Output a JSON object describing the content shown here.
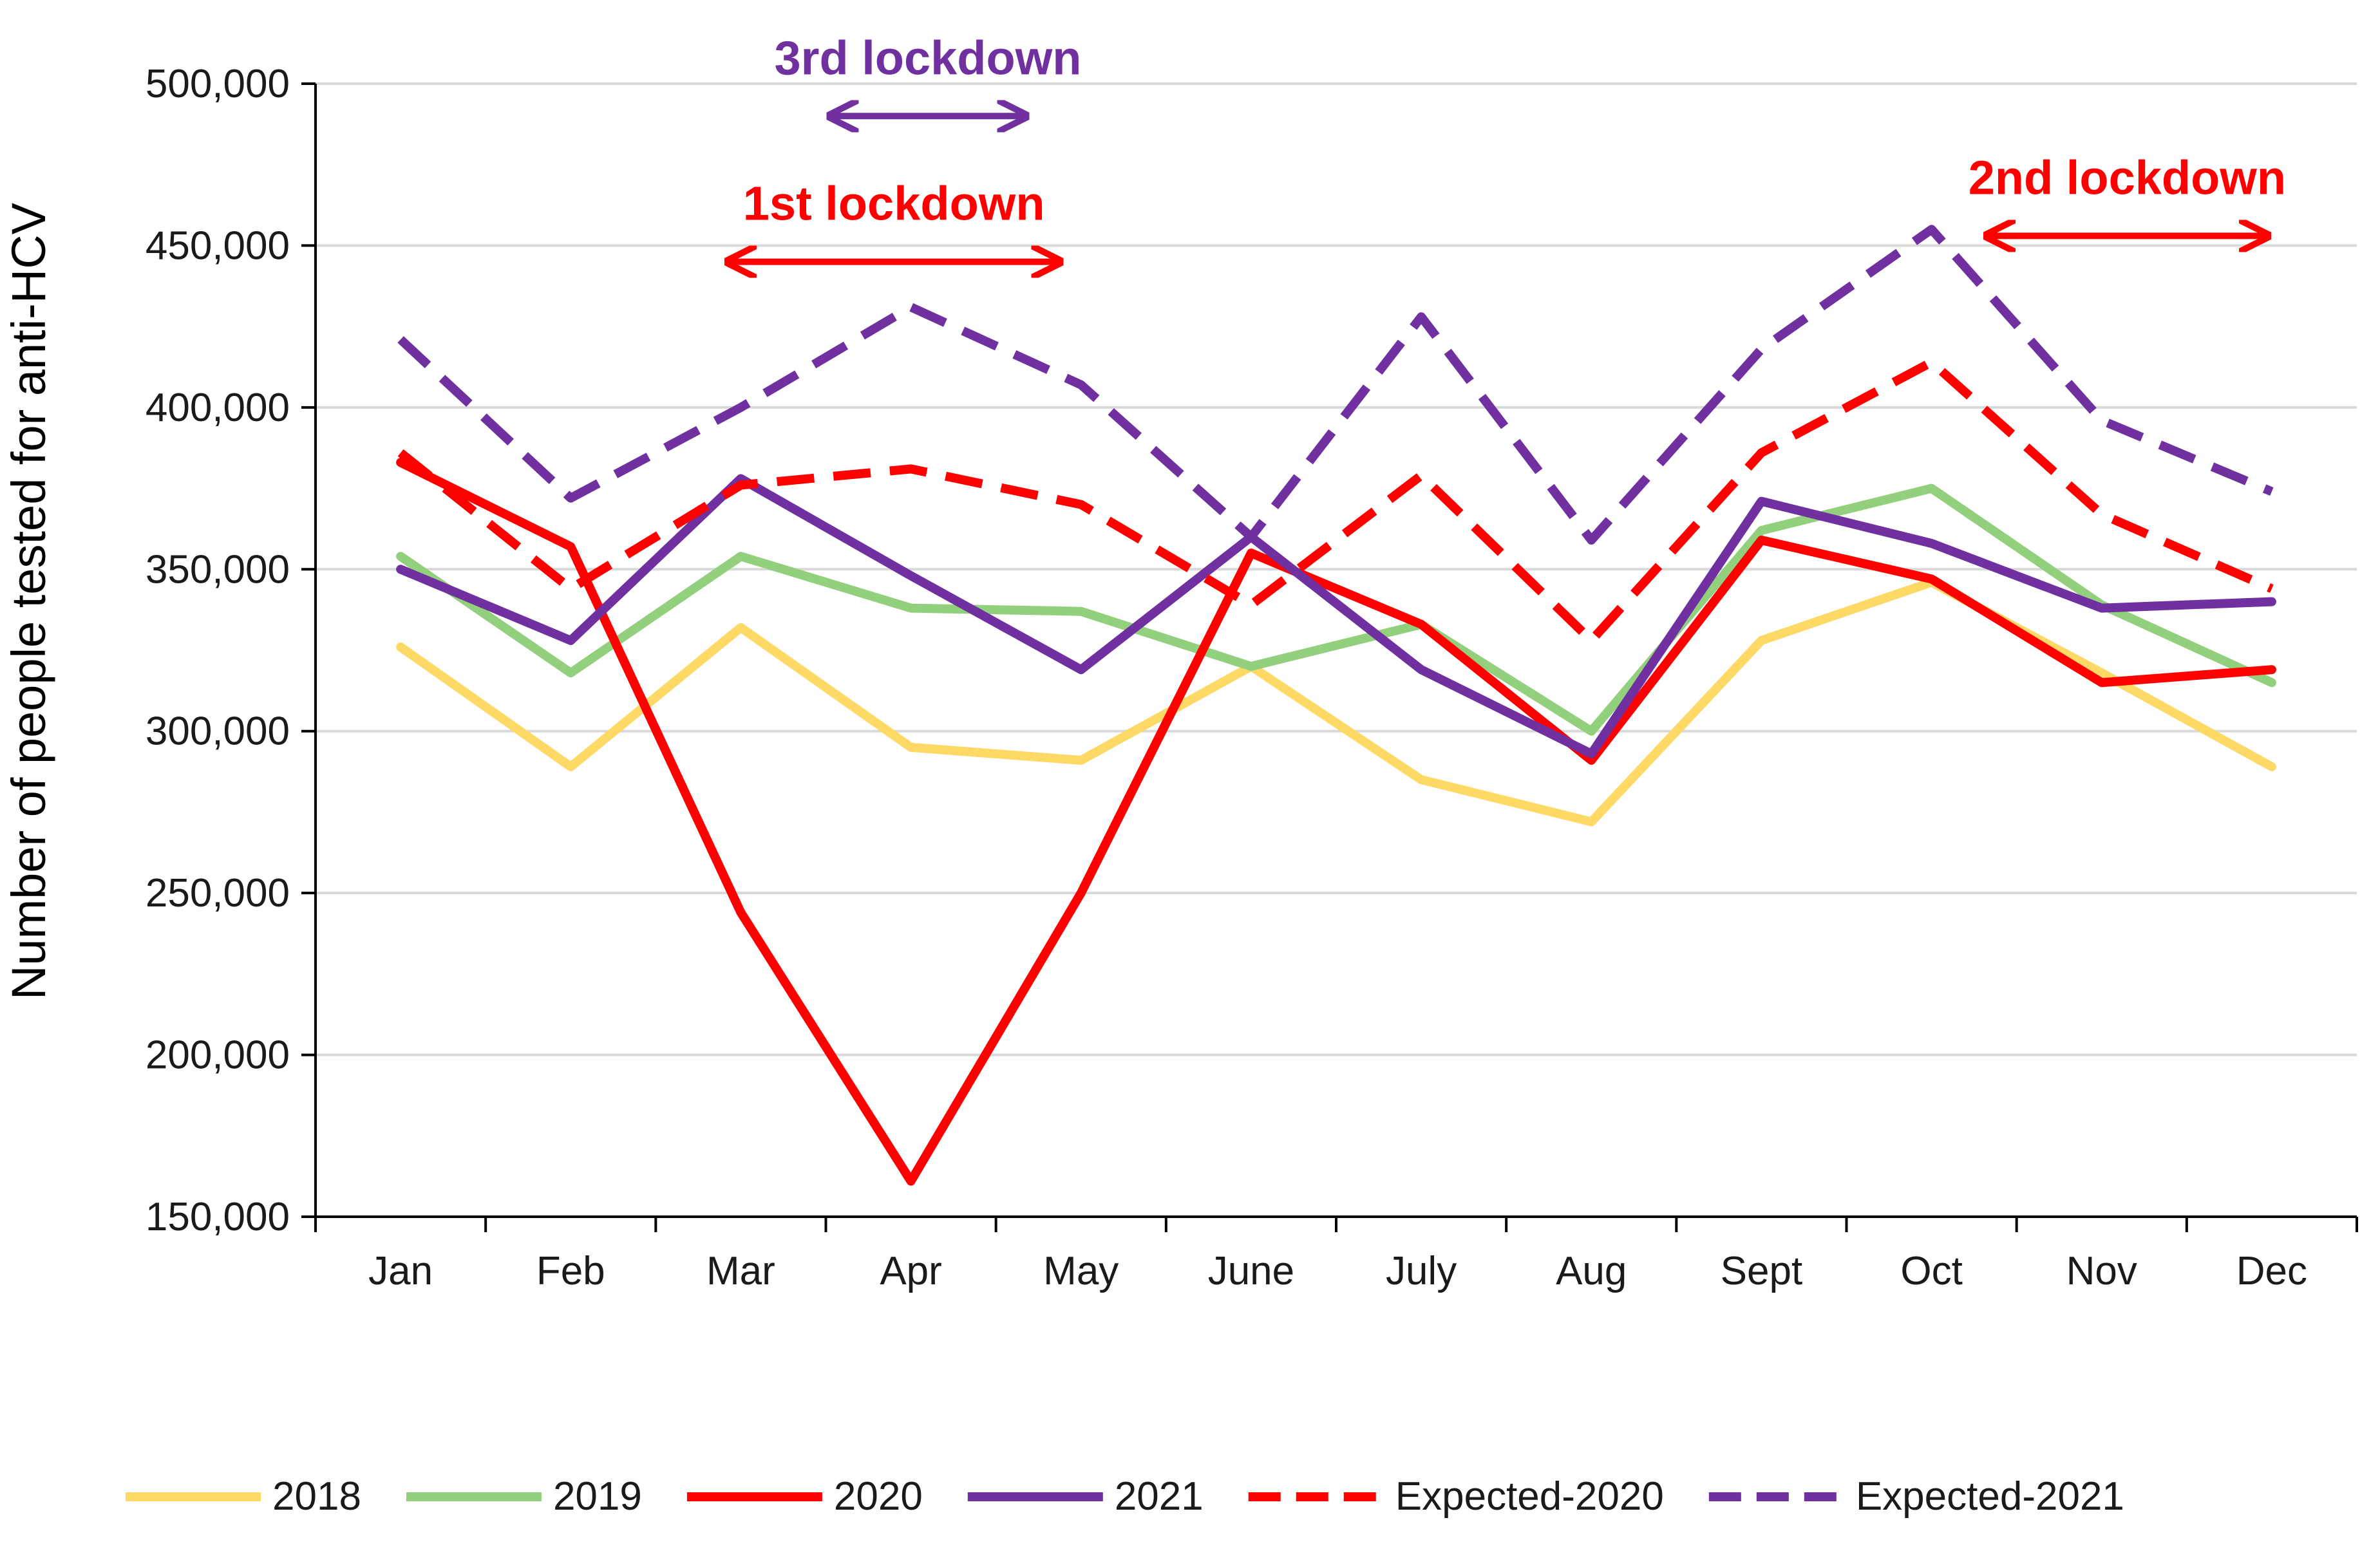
{
  "chart_data": {
    "type": "line",
    "title": "",
    "xlabel": "",
    "ylabel": "Number of people tested for anti-HCV",
    "ylim": [
      150000,
      500000
    ],
    "yticks": [
      150000,
      200000,
      250000,
      300000,
      350000,
      400000,
      450000,
      500000
    ],
    "ytick_labels": [
      "150,000",
      "200,000",
      "250,000",
      "300,000",
      "350,000",
      "400,000",
      "450,000",
      "500,000"
    ],
    "grid": true,
    "legend_position": "bottom",
    "categories": [
      "Jan",
      "Feb",
      "Mar",
      "Apr",
      "May",
      "June",
      "July",
      "Aug",
      "Sept",
      "Oct",
      "Nov",
      "Dec"
    ],
    "series": [
      {
        "name": "2018",
        "color": "#FFD966",
        "dash": false,
        "values": [
          326000,
          289000,
          332000,
          295000,
          291000,
          320000,
          285000,
          272000,
          328000,
          346000,
          318000,
          289000
        ]
      },
      {
        "name": "2019",
        "color": "#93D07E",
        "dash": false,
        "values": [
          354000,
          318000,
          354000,
          338000,
          337000,
          320000,
          333000,
          300000,
          362000,
          375000,
          339000,
          315000
        ]
      },
      {
        "name": "2020",
        "color": "#FF0000",
        "dash": false,
        "values": [
          383000,
          357000,
          244000,
          161000,
          250000,
          355000,
          333000,
          291000,
          359000,
          347000,
          315000,
          319000
        ]
      },
      {
        "name": "2021",
        "color": "#7030A0",
        "dash": false,
        "values": [
          350000,
          328000,
          378000,
          348000,
          319000,
          360000,
          319000,
          293000,
          371000,
          358000,
          338000,
          340000
        ]
      },
      {
        "name": "Expected-2020",
        "color": "#FF0000",
        "dash": true,
        "values": [
          386000,
          344000,
          376000,
          381000,
          370000,
          339000,
          379000,
          328000,
          386000,
          414000,
          367000,
          344000
        ]
      },
      {
        "name": "Expected-2021",
        "color": "#7030A0",
        "dash": true,
        "values": [
          421000,
          372000,
          400000,
          431000,
          407000,
          360000,
          428000,
          359000,
          418000,
          455000,
          396000,
          374000
        ]
      }
    ],
    "annotations": [
      {
        "label": "3rd lockdown",
        "color": "#7030A0",
        "from_month": 3.5,
        "to_month": 4.7,
        "level": 490000
      },
      {
        "label": "1st lockdown",
        "color": "#FF0000",
        "from_month": 2.9,
        "to_month": 4.9,
        "level": 445000
      },
      {
        "label": "2nd lockdown",
        "color": "#FF0000",
        "from_month": 10.3,
        "to_month": 12.0,
        "level": 453000
      }
    ]
  }
}
